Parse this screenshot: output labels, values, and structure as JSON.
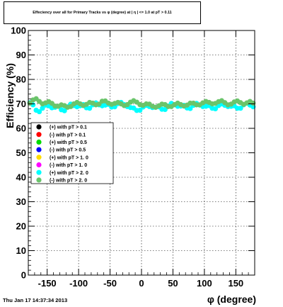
{
  "title": "Effeciency over all for Primary Tracks vs φ (degree) at | η | <= 1.0 at pT > 0.11",
  "footer": "Thu Jan 17 14:37:34 2013",
  "chart_data": {
    "type": "scatter",
    "title": "Effeciency over all for Primary Tracks vs φ (degree) at | η | <= 1.0 at pT > 0.11",
    "xlabel": "φ (degree)",
    "ylabel": "Efficiency (%)",
    "xlim": [
      -180,
      180
    ],
    "ylim": [
      0,
      100
    ],
    "x_ticks": [
      -150,
      -100,
      -50,
      0,
      50,
      100,
      150
    ],
    "y_ticks": [
      0,
      10,
      20,
      30,
      40,
      50,
      60,
      70,
      80,
      90,
      100
    ],
    "grid": true,
    "legend_position": "left",
    "series": [
      {
        "name": "(+) with pT > 0.1",
        "color": "#000000",
        "visible_points": false
      },
      {
        "name": "(-) with pT > 0.1",
        "color": "#ff0000",
        "visible_points": false
      },
      {
        "name": "(+) with pT > 0.5",
        "color": "#00dd00",
        "visible_points": false
      },
      {
        "name": "(-) with pT > 0.5",
        "color": "#0000ff",
        "visible_points": false
      },
      {
        "name": "(+) with pT > 1. 0",
        "color": "#ffdd00",
        "visible_points": false
      },
      {
        "name": "(-) with pT > 1. 0",
        "color": "#ff00ff",
        "visible_points": false
      },
      {
        "name": "(+) with pT > 2. 0",
        "color": "#00ffff",
        "visible_points": true,
        "y": [
          70.5,
          69.6,
          67.4,
          66.8,
          68.2,
          69.5,
          69.2,
          68.4,
          68.6,
          69.0,
          67.6,
          67.2,
          68.8,
          69.9,
          69.3,
          68.8,
          69.2,
          69.7,
          68.4,
          68.2,
          69.6,
          70.4,
          69.6,
          69.2,
          69.5,
          69.8,
          68.7,
          68.8,
          70.1,
          70.6,
          69.7,
          68.9,
          68.5,
          68.3,
          67.3,
          67.4,
          68.7,
          69.4,
          68.9,
          68.5,
          68.6,
          68.8,
          67.8,
          67.7,
          69.1,
          70.2,
          69.6,
          69.0,
          69.1,
          69.4,
          68.3,
          68.1,
          69.4,
          70.2,
          69.5,
          68.9,
          69.0,
          69.3,
          68.2,
          68.0,
          69.3,
          70.0,
          69.4,
          68.9,
          69.0,
          69.2,
          68.2,
          68.2,
          69.6,
          70.3,
          69.5,
          68.8
        ]
      },
      {
        "name": "(-) with pT > 2. 0",
        "color": "#6ac46a",
        "visible_points": true,
        "y": [
          70.3,
          71.6,
          72.1,
          71.0,
          70.0,
          70.4,
          70.9,
          70.2,
          69.1,
          69.0,
          69.6,
          69.3,
          68.6,
          68.9,
          70.0,
          70.6,
          70.0,
          69.3,
          69.8,
          70.6,
          70.3,
          69.6,
          69.9,
          71.1,
          71.2,
          70.3,
          69.8,
          70.2,
          70.6,
          70.0,
          69.3,
          69.7,
          70.7,
          71.3,
          70.7,
          69.7,
          69.4,
          70.0,
          69.9,
          69.0,
          68.6,
          69.2,
          69.9,
          69.7,
          68.9,
          68.9,
          69.7,
          70.3,
          69.7,
          69.1,
          69.5,
          70.3,
          70.3,
          69.6,
          69.6,
          70.4,
          71.0,
          70.6,
          70.0,
          70.2,
          70.9,
          71.3,
          70.5,
          69.6,
          69.9,
          70.8,
          71.2,
          70.5,
          69.8,
          70.4,
          71.0,
          70.3
        ]
      }
    ]
  }
}
